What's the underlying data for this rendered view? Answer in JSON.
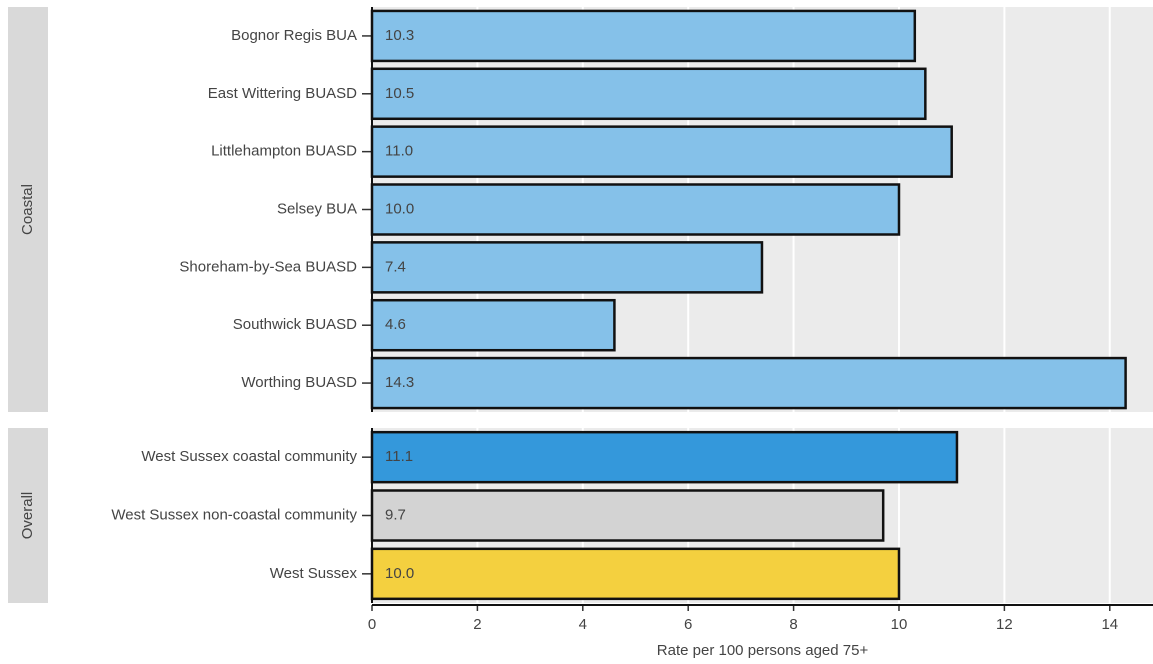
{
  "chart_data": [
    {
      "type": "bar",
      "facet": "Coastal",
      "categories": [
        "Bognor Regis BUA",
        "East Wittering BUASD",
        "Littlehampton BUASD",
        "Selsey BUA",
        "Shoreham-by-Sea BUASD",
        "Southwick BUASD",
        "Worthing BUASD"
      ],
      "values": [
        10.3,
        10.5,
        11.0,
        10.0,
        7.4,
        4.6,
        14.3
      ],
      "value_labels": [
        "10.3",
        "10.5",
        "11.0",
        "10.0",
        "7.4",
        "4.6",
        "14.3"
      ],
      "colors": [
        "#85c1e9",
        "#85c1e9",
        "#85c1e9",
        "#85c1e9",
        "#85c1e9",
        "#85c1e9",
        "#85c1e9"
      ],
      "xlim": [
        0,
        14.82
      ],
      "xticks": [
        0,
        2,
        4,
        6,
        8,
        10,
        12,
        14
      ],
      "grid": true
    },
    {
      "type": "bar",
      "facet": "Overall",
      "categories": [
        "West Sussex coastal community",
        "West Sussex non-coastal community",
        "West Sussex"
      ],
      "values": [
        11.1,
        9.7,
        10.0
      ],
      "value_labels": [
        "11.1",
        "9.7",
        "10.0"
      ],
      "colors": [
        "#3498db",
        "#d3d3d3",
        "#f4d03f"
      ],
      "xlim": [
        0,
        14.82
      ],
      "xticks": [
        0,
        2,
        4,
        6,
        8,
        10,
        12,
        14
      ],
      "grid": true,
      "xlabel": "Rate per 100 persons aged 75+"
    }
  ]
}
